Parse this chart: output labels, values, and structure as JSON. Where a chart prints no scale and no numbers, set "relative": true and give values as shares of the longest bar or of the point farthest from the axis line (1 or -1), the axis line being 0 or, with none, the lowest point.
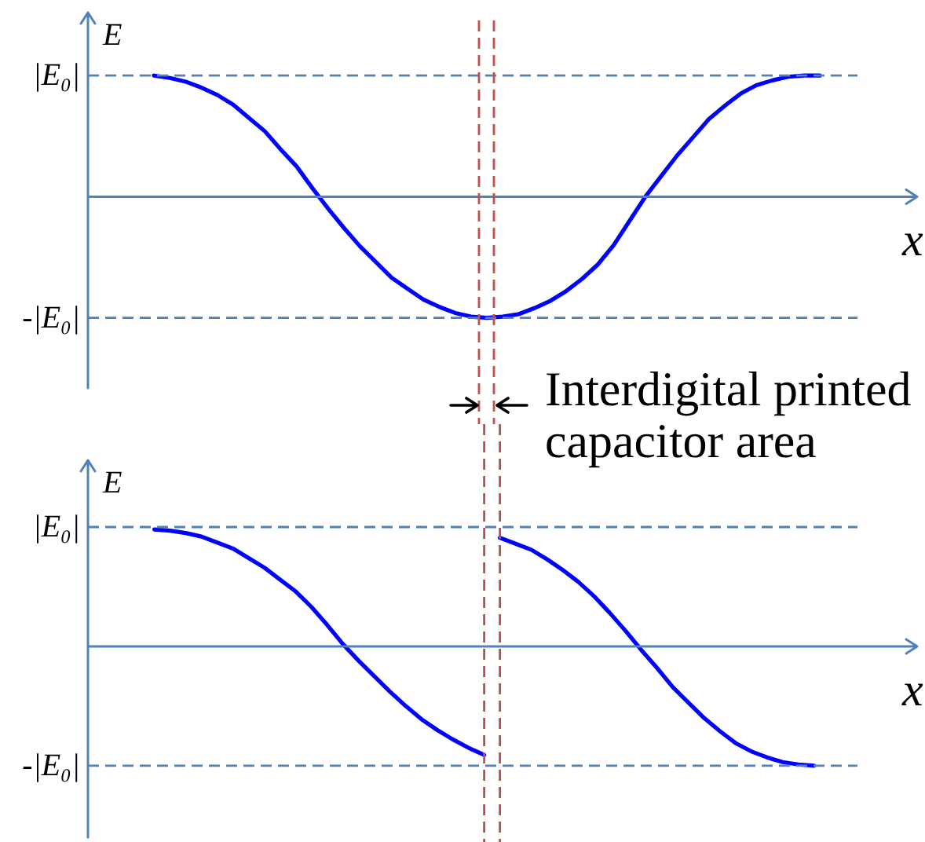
{
  "chart_data": [
    {
      "type": "line",
      "relative": true,
      "xlabel": "x",
      "ylabel": "E",
      "annotations": [
        "Interdigital printed capacitor area"
      ],
      "categories": [
        null,
        null,
        null,
        null,
        null,
        null,
        null,
        null,
        null,
        null,
        null,
        null,
        null,
        null,
        null,
        null,
        null,
        null,
        null,
        null,
        null,
        null,
        null,
        null,
        null,
        null,
        null,
        null,
        null,
        null,
        null,
        null,
        null,
        null,
        null,
        null,
        null,
        null,
        null,
        null,
        null,
        null,
        null
      ],
      "series": [
        {
          "color": "#0000ff",
          "values": [
            1.0,
            0.98,
            0.95,
            0.9,
            0.84,
            0.76,
            0.65,
            0.54,
            0.39,
            0.25,
            0.07,
            -0.1,
            -0.26,
            -0.41,
            -0.54,
            -0.67,
            -0.76,
            -0.85,
            -0.91,
            -0.96,
            -0.99,
            -1.0,
            -0.99,
            -0.97,
            -0.92,
            -0.86,
            -0.78,
            -0.68,
            -0.56,
            -0.4,
            -0.2,
            0.0,
            0.17,
            0.34,
            0.49,
            0.64,
            0.75,
            0.85,
            0.92,
            0.96,
            0.99,
            1.0,
            1.0
          ]
        }
      ],
      "ref_lines": [
        {
          "axis": "y",
          "value": 1,
          "label": "|E₀|",
          "color": "#4f81bd",
          "line_style": "dashed"
        },
        {
          "axis": "y",
          "value": -1,
          "label": "-|E₀|",
          "color": "#4f81bd",
          "line_style": "dashed"
        },
        {
          "axis": "y",
          "value": 0,
          "color": "#4f81bd"
        }
      ]
    },
    {
      "type": "line",
      "relative": true,
      "xlabel": "x",
      "ylabel": "E",
      "categories": [
        null,
        null,
        null,
        null,
        null,
        null,
        null,
        null,
        null,
        null,
        null,
        null,
        null,
        null,
        null,
        null,
        null,
        null,
        null,
        null,
        null,
        null,
        null,
        null,
        null,
        null,
        null,
        null,
        null,
        null,
        null,
        null,
        null,
        null,
        null,
        null,
        null,
        null,
        null,
        null,
        null,
        null,
        null
      ],
      "series": [
        {
          "color": "#0000ff",
          "values": [
            0.98,
            0.97,
            0.95,
            0.92,
            0.87,
            0.82,
            0.74,
            0.66,
            0.56,
            0.46,
            0.33,
            0.18,
            0.02,
            -0.12,
            -0.25,
            -0.38,
            -0.5,
            -0.61,
            -0.7,
            -0.78,
            -0.85,
            -0.91,
            null,
            null,
            null,
            null,
            null,
            null,
            null,
            null,
            null,
            null,
            null,
            null,
            null,
            null,
            null,
            null,
            null,
            null,
            null,
            null,
            null
          ]
        },
        {
          "color": "#0000ff",
          "values": [
            null,
            null,
            null,
            null,
            null,
            null,
            null,
            null,
            null,
            null,
            null,
            null,
            null,
            null,
            null,
            null,
            null,
            null,
            null,
            null,
            null,
            null,
            0.91,
            0.86,
            0.81,
            0.73,
            0.64,
            0.54,
            0.42,
            0.28,
            0.13,
            -0.03,
            -0.18,
            -0.34,
            -0.47,
            -0.6,
            -0.71,
            -0.81,
            -0.88,
            -0.93,
            -0.97,
            -0.99,
            -1.0
          ]
        }
      ],
      "ref_lines": [
        {
          "axis": "y",
          "value": 1,
          "label": "|E₀|",
          "color": "#4f81bd",
          "line_style": "dashed"
        },
        {
          "axis": "y",
          "value": -1,
          "label": "-|E₀|",
          "color": "#4f81bd",
          "line_style": "dashed"
        },
        {
          "axis": "y",
          "value": 0,
          "color": "#4f81bd"
        }
      ]
    }
  ]
}
